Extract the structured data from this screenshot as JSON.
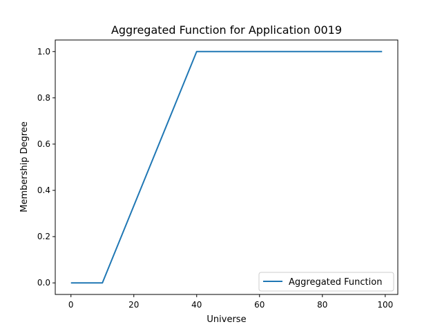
{
  "chart_data": {
    "type": "line",
    "title": "Aggregated Function for Application 0019",
    "xlabel": "Universe",
    "ylabel": "Membership Degree",
    "xlim": [
      -5,
      104
    ],
    "ylim": [
      -0.05,
      1.05
    ],
    "x_ticks": [
      0,
      20,
      40,
      60,
      80,
      100
    ],
    "y_ticks": [
      0.0,
      0.2,
      0.4,
      0.6,
      0.8,
      1.0
    ],
    "x_tick_labels": [
      "0",
      "20",
      "40",
      "60",
      "80",
      "100"
    ],
    "y_tick_labels": [
      "0.0",
      "0.2",
      "0.4",
      "0.6",
      "0.8",
      "1.0"
    ],
    "grid": false,
    "legend_position": "lower-right",
    "series": [
      {
        "name": "Aggregated Function",
        "color": "#1f77b4",
        "x": [
          0,
          10,
          40,
          99
        ],
        "y": [
          0.0,
          0.0,
          1.0,
          1.0
        ]
      }
    ]
  }
}
